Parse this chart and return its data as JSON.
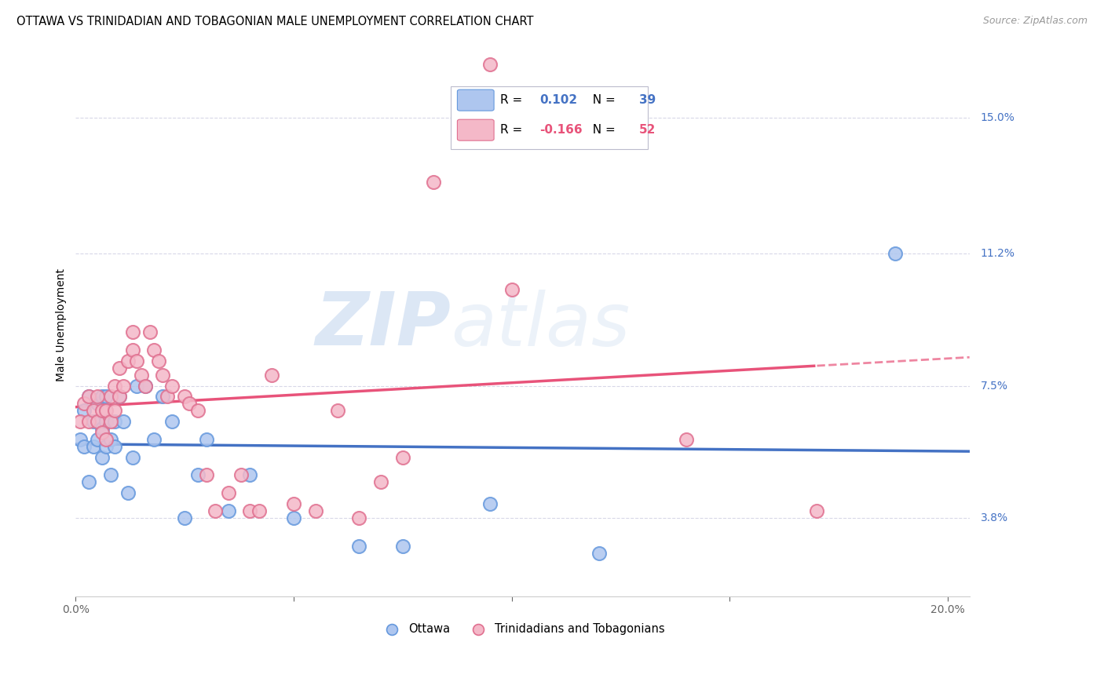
{
  "title": "OTTAWA VS TRINIDADIAN AND TOBAGONIAN MALE UNEMPLOYMENT CORRELATION CHART",
  "source": "Source: ZipAtlas.com",
  "ylabel": "Male Unemployment",
  "xlim": [
    0.0,
    0.205
  ],
  "ylim": [
    0.016,
    0.168
  ],
  "yticks": [
    0.038,
    0.075,
    0.112,
    0.15
  ],
  "ytick_labels": [
    "3.8%",
    "7.5%",
    "11.2%",
    "15.0%"
  ],
  "xticks": [
    0.0,
    0.05,
    0.1,
    0.15,
    0.2
  ],
  "xtick_labels": [
    "0.0%",
    "",
    "",
    "",
    "20.0%"
  ],
  "watermark_zip": "ZIP",
  "watermark_atlas": "atlas",
  "ottawa_color": "#aec6ef",
  "ottawa_edge": "#6699dd",
  "trinidadian_color": "#f4b8c8",
  "trinidadian_edge": "#e07090",
  "trend_ottawa_color": "#4472c4",
  "trend_trinidadian_color": "#e8537a",
  "R_ottawa": "0.102",
  "N_ottawa": "39",
  "R_trinidadian": "-0.166",
  "N_trinidadian": "52",
  "ottawa_x": [
    0.001,
    0.002,
    0.002,
    0.003,
    0.003,
    0.004,
    0.004,
    0.005,
    0.005,
    0.006,
    0.006,
    0.006,
    0.007,
    0.007,
    0.007,
    0.008,
    0.008,
    0.009,
    0.009,
    0.01,
    0.011,
    0.012,
    0.013,
    0.014,
    0.016,
    0.018,
    0.02,
    0.022,
    0.025,
    0.028,
    0.03,
    0.035,
    0.04,
    0.05,
    0.065,
    0.075,
    0.095,
    0.12,
    0.188
  ],
  "ottawa_y": [
    0.06,
    0.068,
    0.058,
    0.072,
    0.048,
    0.065,
    0.058,
    0.07,
    0.06,
    0.072,
    0.063,
    0.055,
    0.072,
    0.065,
    0.058,
    0.06,
    0.05,
    0.065,
    0.058,
    0.072,
    0.065,
    0.045,
    0.055,
    0.075,
    0.075,
    0.06,
    0.072,
    0.065,
    0.038,
    0.05,
    0.06,
    0.04,
    0.05,
    0.038,
    0.03,
    0.03,
    0.042,
    0.028,
    0.112
  ],
  "trinidadian_x": [
    0.001,
    0.002,
    0.003,
    0.003,
    0.004,
    0.005,
    0.005,
    0.006,
    0.006,
    0.007,
    0.007,
    0.008,
    0.008,
    0.009,
    0.009,
    0.01,
    0.01,
    0.011,
    0.012,
    0.013,
    0.013,
    0.014,
    0.015,
    0.016,
    0.017,
    0.018,
    0.019,
    0.02,
    0.021,
    0.022,
    0.025,
    0.026,
    0.028,
    0.03,
    0.032,
    0.035,
    0.038,
    0.04,
    0.042,
    0.045,
    0.05,
    0.055,
    0.06,
    0.065,
    0.07,
    0.075,
    0.082,
    0.09,
    0.095,
    0.1,
    0.14,
    0.17
  ],
  "trinidadian_y": [
    0.065,
    0.07,
    0.072,
    0.065,
    0.068,
    0.072,
    0.065,
    0.068,
    0.062,
    0.068,
    0.06,
    0.072,
    0.065,
    0.075,
    0.068,
    0.08,
    0.072,
    0.075,
    0.082,
    0.09,
    0.085,
    0.082,
    0.078,
    0.075,
    0.09,
    0.085,
    0.082,
    0.078,
    0.072,
    0.075,
    0.072,
    0.07,
    0.068,
    0.05,
    0.04,
    0.045,
    0.05,
    0.04,
    0.04,
    0.078,
    0.042,
    0.04,
    0.068,
    0.038,
    0.048,
    0.055,
    0.132,
    0.148,
    0.165,
    0.102,
    0.06,
    0.04
  ],
  "background_color": "#ffffff",
  "grid_color": "#d8d8e8"
}
